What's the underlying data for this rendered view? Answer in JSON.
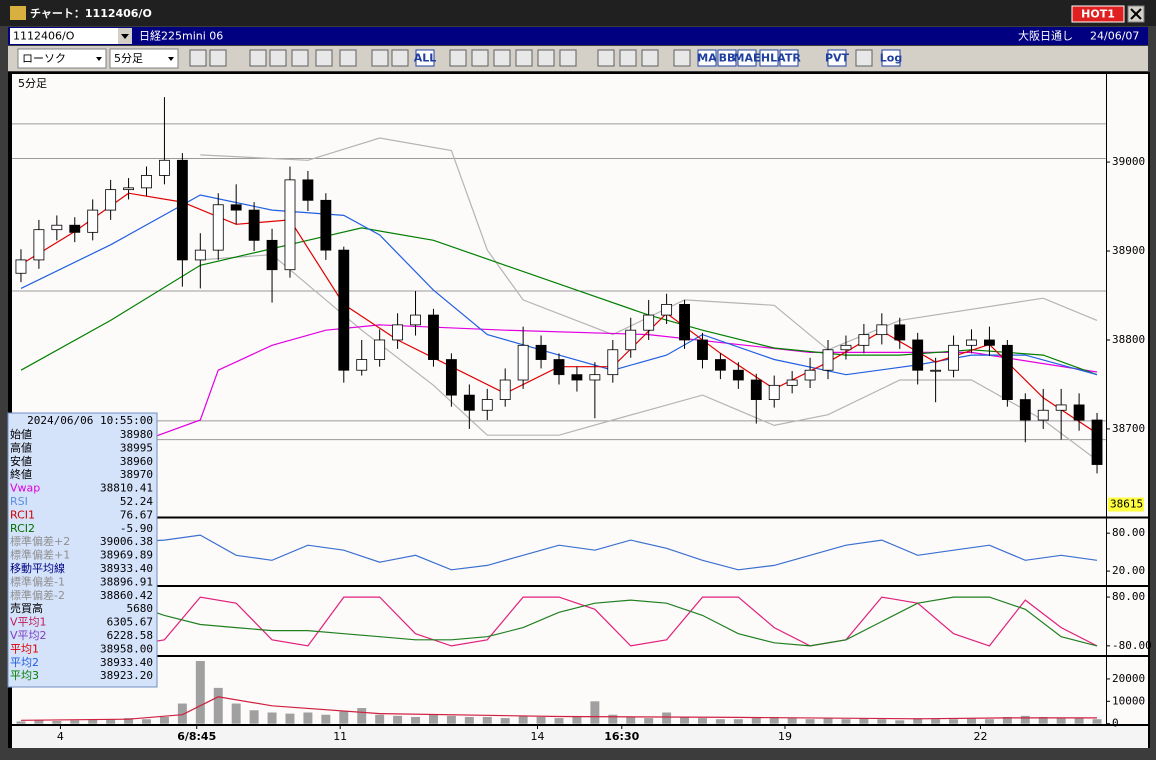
{
  "window": {
    "title": "チャート：1112406/O",
    "hot_button": "HOT1"
  },
  "header": {
    "symbol": "1112406/O",
    "name": "日経225mini 06",
    "session": "大阪日通し",
    "date": "24/06/07"
  },
  "toolbar": {
    "chart_style": "ローソク",
    "interval": "5分足",
    "buttons": [
      "ALL",
      "MA",
      "BB",
      "MAE",
      "HL",
      "ATR",
      "PVT",
      "Log"
    ]
  },
  "info_panel": {
    "timestamp": "2024/06/06 10:55:00",
    "rows": [
      {
        "label": "始値",
        "value": "38980",
        "color": "#000000"
      },
      {
        "label": "高値",
        "value": "38995",
        "color": "#000000"
      },
      {
        "label": "安値",
        "value": "38960",
        "color": "#000000"
      },
      {
        "label": "終値",
        "value": "38970",
        "color": "#000000"
      },
      {
        "label": "Vwap",
        "value": "38810.41",
        "color": "#e000e0"
      },
      {
        "label": "RSI",
        "value": "52.24",
        "color": "#5a8ee0"
      },
      {
        "label": "RCI1",
        "value": "76.67",
        "color": "#d00000"
      },
      {
        "label": "RCI2",
        "value": "-5.90",
        "color": "#007000"
      },
      {
        "label": "標準偏差+2",
        "value": "39006.38",
        "color": "#909090"
      },
      {
        "label": "標準偏差+1",
        "value": "38969.89",
        "color": "#909090"
      },
      {
        "label": "移動平均線",
        "value": "38933.40",
        "color": "#000080"
      },
      {
        "label": "標準偏差-1",
        "value": "38896.91",
        "color": "#909090"
      },
      {
        "label": "標準偏差-2",
        "value": "38860.42",
        "color": "#909090"
      },
      {
        "label": "売買高",
        "value": "5680",
        "color": "#000000"
      },
      {
        "label": "V平均1",
        "value": "6305.67",
        "color": "#c02060"
      },
      {
        "label": "V平均2",
        "value": "6228.58",
        "color": "#8040c0"
      },
      {
        "label": "平均1",
        "value": "38958.00",
        "color": "#e00000"
      },
      {
        "label": "平均2",
        "value": "38933.40",
        "color": "#2060e0"
      },
      {
        "label": "平均3",
        "value": "38923.20",
        "color": "#008000"
      }
    ]
  },
  "chart_data": [
    {
      "type": "candlestick",
      "label": "5分足",
      "xlim": [
        -0.5,
        60.5
      ],
      "ylim": [
        38601,
        39099
      ],
      "yticks": [
        38700,
        38800,
        38900,
        39000
      ],
      "open": [
        38875,
        38890,
        38924,
        38929,
        38921,
        38946,
        38969,
        38971,
        38985,
        39002,
        38890,
        38901,
        38952,
        38946,
        38912,
        38879,
        38980,
        38957,
        38901,
        38766,
        38778,
        38800,
        38817,
        38828,
        38778,
        38738,
        38721,
        38733,
        38755,
        38794,
        38778,
        38761,
        38755,
        38761,
        38789,
        38811,
        38828,
        38840,
        38800,
        38778,
        38766,
        38755,
        38733,
        38749,
        38755,
        38766,
        38789,
        38794,
        38806,
        38817,
        38800,
        38766,
        38766,
        38794,
        38800,
        38794,
        38733,
        38710,
        38721,
        38727,
        38710
      ],
      "high": [
        38902,
        38935,
        38940,
        38938,
        38958,
        38980,
        38982,
        38995,
        39073,
        39010,
        38920,
        38965,
        38975,
        38955,
        38925,
        38995,
        38990,
        38965,
        38905,
        38800,
        38812,
        38830,
        38855,
        38835,
        38785,
        38750,
        38745,
        38768,
        38815,
        38805,
        38785,
        38770,
        38775,
        38800,
        38825,
        38845,
        38852,
        38845,
        38808,
        38785,
        38775,
        38762,
        38760,
        38765,
        38780,
        38800,
        38805,
        38818,
        38830,
        38825,
        38808,
        38780,
        38805,
        38812,
        38815,
        38800,
        38740,
        38745,
        38745,
        38740,
        38718
      ],
      "low": [
        38865,
        38880,
        38912,
        38910,
        38912,
        38935,
        38958,
        38962,
        38975,
        38860,
        38858,
        38890,
        38930,
        38900,
        38842,
        38870,
        38945,
        38890,
        38752,
        38760,
        38770,
        38790,
        38805,
        38770,
        38725,
        38700,
        38710,
        38725,
        38745,
        38768,
        38750,
        38742,
        38712,
        38752,
        38780,
        38800,
        38818,
        38790,
        38768,
        38756,
        38745,
        38706,
        38724,
        38740,
        38746,
        38756,
        38778,
        38785,
        38795,
        38790,
        38750,
        38730,
        38758,
        38785,
        38782,
        38725,
        38685,
        38700,
        38688,
        38698,
        38650
      ],
      "close": [
        38890,
        38924,
        38929,
        38921,
        38946,
        38969,
        38971,
        38985,
        39002,
        38890,
        38901,
        38952,
        38946,
        38912,
        38879,
        38980,
        38957,
        38901,
        38766,
        38778,
        38800,
        38817,
        38828,
        38778,
        38738,
        38721,
        38733,
        38755,
        38794,
        38778,
        38761,
        38755,
        38761,
        38789,
        38811,
        38828,
        38840,
        38800,
        38778,
        38766,
        38755,
        38733,
        38749,
        38755,
        38766,
        38789,
        38794,
        38806,
        38817,
        38800,
        38766,
        38766,
        38794,
        38800,
        38794,
        38733,
        38710,
        38721,
        38727,
        38710,
        38660
      ],
      "up_color": "#ffffff",
      "down_color": "#000000",
      "reference_lines": [
        39043,
        39004,
        38855,
        38709,
        38688
      ],
      "reference_color": "#9a9a9a",
      "lines": [
        {
          "color": "#b4b4b4",
          "x": [
            10,
            16,
            20,
            24,
            26,
            28,
            33,
            37,
            42,
            45,
            49,
            57,
            60
          ],
          "values": [
            39008,
            39002,
            39027,
            39013,
            38901,
            38845,
            38806,
            38845,
            38839,
            38789,
            38822,
            38847,
            38822
          ]
        },
        {
          "color": "#b4b4b4",
          "x": [
            10,
            14,
            19,
            23,
            26,
            30,
            33,
            38,
            42,
            45,
            49,
            53,
            57,
            60
          ],
          "values": [
            38890,
            38896,
            38811,
            38749,
            38693,
            38693,
            38710,
            38738,
            38704,
            38716,
            38755,
            38755,
            38710,
            38665
          ]
        },
        {
          "color": "#e000e0",
          "x": [
            7,
            10,
            11,
            14,
            17,
            20,
            27,
            35,
            44,
            53,
            60
          ],
          "values": [
            38688,
            38710,
            38766,
            38794,
            38811,
            38817,
            38811,
            38806,
            38786,
            38786,
            38764
          ]
        },
        {
          "color": "#008000",
          "x": [
            0,
            5,
            10,
            16,
            19,
            23,
            27,
            31,
            35,
            38,
            42,
            46,
            49,
            53,
            57,
            60
          ],
          "values": [
            38766,
            38822,
            38884,
            38912,
            38926,
            38912,
            38884,
            38856,
            38828,
            38811,
            38791,
            38783,
            38783,
            38789,
            38783,
            38761
          ]
        },
        {
          "color": "#2060e0",
          "x": [
            0,
            5,
            10,
            14,
            18,
            20,
            23,
            26,
            30,
            33,
            36,
            38,
            42,
            46,
            50,
            53,
            56,
            60
          ],
          "values": [
            38858,
            38907,
            38963,
            38946,
            38940,
            38918,
            38856,
            38806,
            38783,
            38766,
            38783,
            38806,
            38778,
            38761,
            38772,
            38783,
            38783,
            38761
          ]
        },
        {
          "color": "#e00000",
          "x": [
            0,
            3,
            6,
            9,
            12,
            15,
            18,
            21,
            24,
            27,
            30,
            33,
            36,
            39,
            42,
            45,
            48,
            51,
            54,
            57,
            60
          ],
          "values": [
            38885,
            38922,
            38965,
            38955,
            38930,
            38935,
            38840,
            38800,
            38770,
            38740,
            38770,
            38770,
            38830,
            38785,
            38745,
            38775,
            38810,
            38775,
            38795,
            38735,
            38695
          ]
        }
      ],
      "last_price": 38615,
      "last_price_color": "#ffff40"
    },
    {
      "type": "line",
      "xlim": [
        -0.5,
        60.5
      ],
      "ylim": [
        -2,
        104
      ],
      "yticks": [
        {
          "value": 20,
          "label": "20.00"
        },
        {
          "value": 80,
          "label": "80.00"
        }
      ],
      "series": [
        {
          "color": "#3a70d0",
          "x": [
            0,
            2,
            4,
            6,
            8,
            10,
            12,
            14,
            16,
            18,
            20,
            22,
            24,
            26,
            28,
            30,
            32,
            34,
            36,
            38,
            40,
            42,
            44,
            46,
            48,
            50,
            52,
            54,
            56,
            58,
            60
          ],
          "values": [
            61,
            69,
            61,
            66,
            69,
            77,
            45,
            37,
            61,
            53,
            34,
            45,
            22,
            29,
            45,
            61,
            53,
            69,
            56,
            37,
            22,
            29,
            45,
            61,
            69,
            45,
            53,
            61,
            37,
            45,
            37
          ]
        }
      ]
    },
    {
      "type": "line",
      "xlim": [
        -0.5,
        60.5
      ],
      "ylim": [
        -110,
        113
      ],
      "yticks": [
        {
          "value": -80,
          "label": "-80.00"
        },
        {
          "value": 80,
          "label": "80.00"
        }
      ],
      "series": [
        {
          "color": "#e0207a",
          "x": [
            0,
            2,
            4,
            6,
            8,
            10,
            12,
            14,
            16,
            18,
            20,
            22,
            24,
            26,
            28,
            30,
            32,
            34,
            36,
            38,
            40,
            42,
            44,
            46,
            48,
            50,
            52,
            54,
            56,
            58,
            60
          ],
          "values": [
            80,
            60,
            -40,
            -80,
            -60,
            80,
            60,
            -60,
            -80,
            80,
            80,
            -40,
            -80,
            -60,
            80,
            80,
            40,
            -80,
            -60,
            80,
            80,
            -20,
            -80,
            -60,
            80,
            60,
            -40,
            -80,
            70,
            -20,
            -80
          ]
        },
        {
          "color": "#208020",
          "x": [
            0,
            2,
            4,
            6,
            8,
            10,
            12,
            14,
            16,
            18,
            20,
            22,
            24,
            26,
            28,
            30,
            32,
            34,
            36,
            38,
            40,
            42,
            44,
            46,
            48,
            50,
            52,
            54,
            56,
            58,
            60
          ],
          "values": [
            70,
            75,
            80,
            60,
            20,
            -10,
            -20,
            -30,
            -30,
            -40,
            -50,
            -60,
            -60,
            -50,
            -20,
            30,
            60,
            70,
            60,
            20,
            -40,
            -70,
            -80,
            -60,
            0,
            60,
            80,
            80,
            40,
            -50,
            -80
          ]
        }
      ]
    },
    {
      "type": "bar",
      "xlim": [
        -0.5,
        60.5
      ],
      "ylim": [
        -140,
        29800
      ],
      "yticks": [
        0,
        10000,
        20000
      ],
      "color": "#a0a0a0",
      "values": [
        1000,
        1500,
        1200,
        1500,
        1800,
        2000,
        2500,
        2000,
        3000,
        9000,
        28000,
        16000,
        9000,
        6000,
        5000,
        4500,
        5000,
        4000,
        5500,
        7000,
        4000,
        3500,
        3000,
        4000,
        3500,
        3000,
        3000,
        2500,
        3500,
        3000,
        2500,
        3000,
        10000,
        4000,
        3000,
        2500,
        5000,
        3000,
        2500,
        2000,
        2000,
        2500,
        3000,
        2500,
        2000,
        2500,
        2000,
        2500,
        2000,
        1500,
        2500,
        2000,
        2000,
        2500,
        2000,
        3000,
        3500,
        3000,
        2500,
        2500,
        2000
      ],
      "lines": [
        {
          "color": "#d02040",
          "x": [
            0,
            6,
            9,
            11,
            14,
            20,
            30,
            40,
            50,
            55,
            60
          ],
          "values": [
            1500,
            2000,
            4000,
            12000,
            8000,
            4500,
            3200,
            2800,
            2200,
            2600,
            2600
          ]
        }
      ],
      "xticks": [
        {
          "value": 2.2,
          "label": "4"
        },
        {
          "value": 9.8,
          "label": "6/8:45"
        },
        {
          "value": 17.8,
          "label": "11"
        },
        {
          "value": 28.8,
          "label": "14"
        },
        {
          "value": 33.5,
          "label": "16:30"
        },
        {
          "value": 42.6,
          "label": "19"
        },
        {
          "value": 53.5,
          "label": "22"
        }
      ]
    }
  ]
}
